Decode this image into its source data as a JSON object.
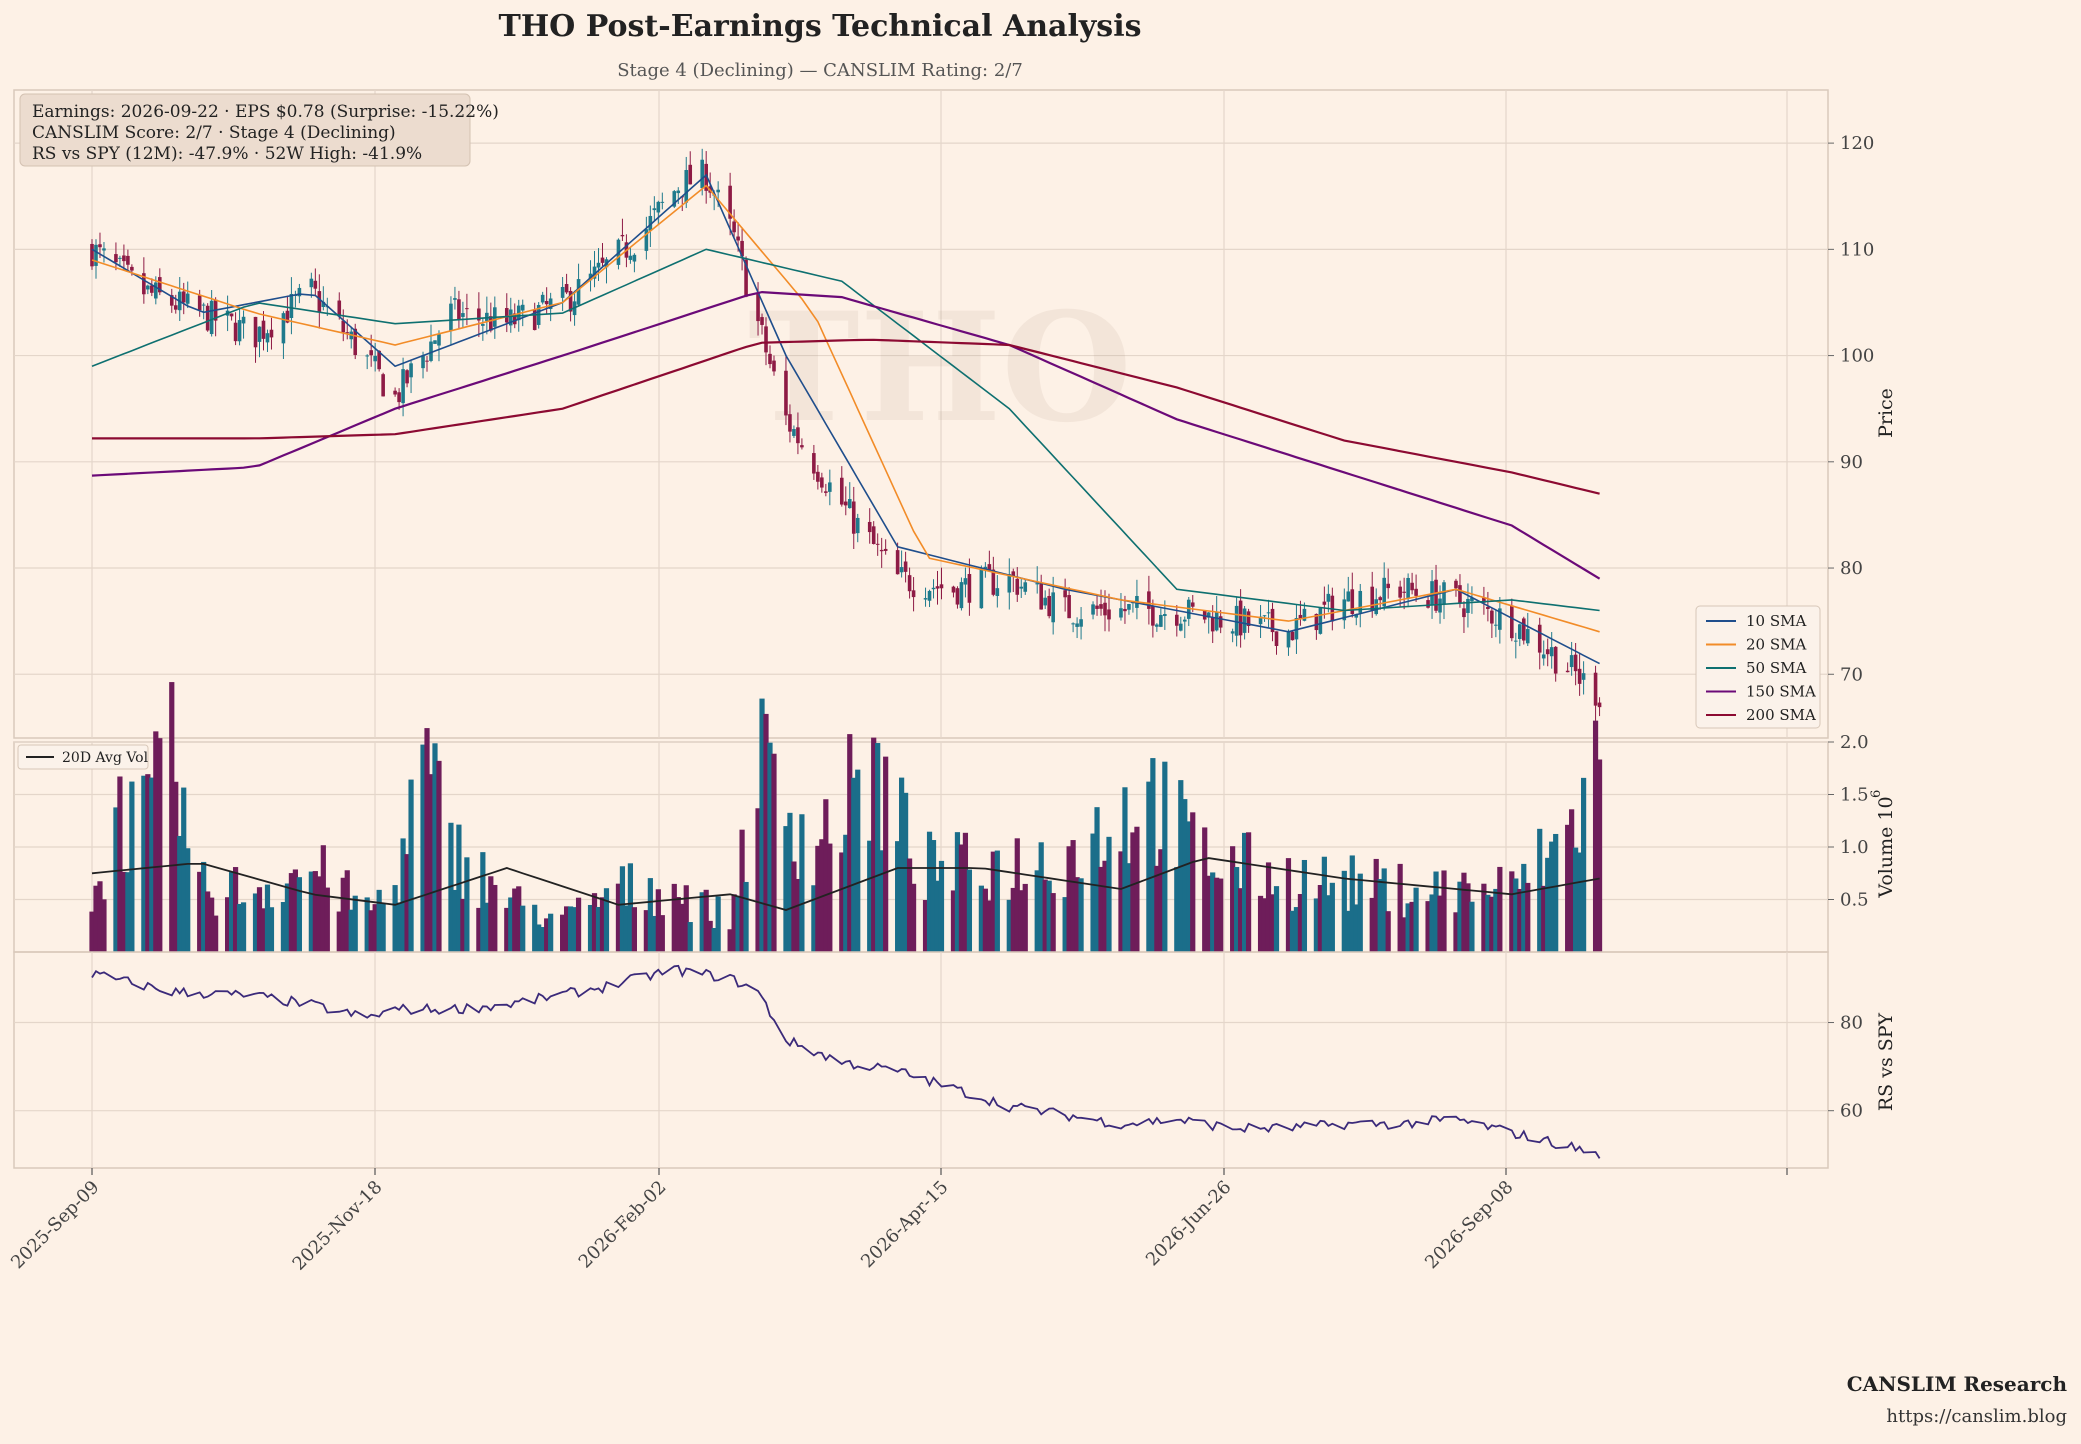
{
  "header": {
    "title": "THO Post-Earnings Technical Analysis",
    "subtitle": "Stage 4 (Declining) — CANSLIM Rating: 2/7"
  },
  "info_box": {
    "line1": "Earnings: 2026-09-22 · EPS $0.78 (Surprise: -15.22%)",
    "line2": "CANSLIM Score: 2/7 · Stage 4 (Declining)",
    "line3": "RS vs SPY (12M): -47.9% · 52W High: -41.9%"
  },
  "watermark": "THO",
  "footer": {
    "brand": "CANSLIM Research",
    "url": "https://canslim.blog"
  },
  "colors": {
    "background": "#fdf1e6",
    "up_candle": "#1f7a8c",
    "down_candle": "#8e1b45",
    "sma10": "#1f4e8c",
    "sma20": "#f28c28",
    "sma50": "#0e7070",
    "sma150": "#6b0a78",
    "sma200": "#8c0a32",
    "volume_up": "#1b6e8a",
    "volume_down": "#6e1d5a",
    "avg_vol": "#222222",
    "rs_line": "#3b2a7a"
  },
  "chart_data": [
    {
      "type": "candlestick",
      "panel": "price",
      "ylabel": "Price",
      "ylim": [
        64,
        125
      ],
      "yticks": [
        70,
        80,
        90,
        100,
        110,
        120
      ],
      "x_start": "2025-09-09",
      "x_end": "2026-09-22",
      "x_ticks": [
        "2025-Sep-09",
        "2025-Nov-18",
        "2026-Feb-02",
        "2026-Apr-15",
        "2026-Jun-26",
        "2026-Sep-08"
      ],
      "close_anchors": [
        [
          "2025-09-09",
          110
        ],
        [
          "2025-09-22",
          106
        ],
        [
          "2025-10-06",
          104
        ],
        [
          "2025-10-20",
          102
        ],
        [
          "2025-11-03",
          106
        ],
        [
          "2025-11-14",
          101
        ],
        [
          "2025-11-24",
          96
        ],
        [
          "2025-12-08",
          104
        ],
        [
          "2025-12-22",
          103
        ],
        [
          "2026-01-05",
          105
        ],
        [
          "2026-01-15",
          108
        ],
        [
          "2026-01-26",
          112
        ],
        [
          "2026-02-03",
          116
        ],
        [
          "2026-02-10",
          117
        ],
        [
          "2026-02-17",
          111
        ],
        [
          "2026-02-23",
          103
        ],
        [
          "2026-03-02",
          94
        ],
        [
          "2026-03-16",
          86
        ],
        [
          "2026-03-30",
          79
        ],
        [
          "2026-04-13",
          78
        ],
        [
          "2026-04-27",
          79
        ],
        [
          "2026-05-11",
          76
        ],
        [
          "2026-05-25",
          76
        ],
        [
          "2026-06-08",
          76
        ],
        [
          "2026-06-22",
          75
        ],
        [
          "2026-07-06",
          74
        ],
        [
          "2026-07-20",
          77
        ],
        [
          "2026-08-03",
          78
        ],
        [
          "2026-08-17",
          77
        ],
        [
          "2026-08-31",
          75
        ],
        [
          "2026-09-10",
          72
        ],
        [
          "2026-09-22",
          68
        ]
      ],
      "sma_series": [
        {
          "name": "10 SMA",
          "values": [
            [
              "2025-09-09",
              110
            ],
            [
              "2025-10-06",
              104
            ],
            [
              "2025-11-03",
              106
            ],
            [
              "2025-11-24",
              99
            ],
            [
              "2026-01-05",
              105
            ],
            [
              "2026-02-10",
              117
            ],
            [
              "2026-03-02",
              100
            ],
            [
              "2026-03-30",
              82
            ],
            [
              "2026-05-11",
              78
            ],
            [
              "2026-07-06",
              74
            ],
            [
              "2026-08-17",
              78
            ],
            [
              "2026-09-22",
              71
            ]
          ]
        },
        {
          "name": "20 SMA",
          "values": [
            [
              "2025-09-09",
              109
            ],
            [
              "2025-10-20",
              104
            ],
            [
              "2025-11-24",
              101
            ],
            [
              "2026-01-05",
              105
            ],
            [
              "2026-02-10",
              116
            ],
            [
              "2026-03-09",
              104
            ],
            [
              "2026-04-06",
              81
            ],
            [
              "2026-05-25",
              77
            ],
            [
              "2026-07-06",
              75
            ],
            [
              "2026-08-17",
              78
            ],
            [
              "2026-09-22",
              74
            ]
          ]
        },
        {
          "name": "50 SMA",
          "values": [
            [
              "2025-09-09",
              99
            ],
            [
              "2025-10-20",
              105
            ],
            [
              "2025-11-24",
              103
            ],
            [
              "2026-01-05",
              104
            ],
            [
              "2026-02-10",
              110
            ],
            [
              "2026-03-16",
              107
            ],
            [
              "2026-04-27",
              95
            ],
            [
              "2026-06-08",
              78
            ],
            [
              "2026-07-20",
              76
            ],
            [
              "2026-08-31",
              77
            ],
            [
              "2026-09-22",
              76
            ]
          ]
        },
        {
          "name": "150 SMA",
          "values": [
            [
              "2025-09-09",
              88.7
            ],
            [
              "2025-10-20",
              89.5
            ],
            [
              "2025-11-24",
              95
            ],
            [
              "2026-01-05",
              100
            ],
            [
              "2026-02-23",
              106
            ],
            [
              "2026-03-16",
              105.5
            ],
            [
              "2026-04-27",
              101
            ],
            [
              "2026-06-08",
              94
            ],
            [
              "2026-07-20",
              89
            ],
            [
              "2026-08-31",
              84
            ],
            [
              "2026-09-22",
              79
            ]
          ]
        },
        {
          "name": "200 SMA",
          "values": [
            [
              "2025-09-09",
              92.2
            ],
            [
              "2025-10-20",
              92.2
            ],
            [
              "2025-11-24",
              92.6
            ],
            [
              "2026-01-05",
              95
            ],
            [
              "2026-02-23",
              101.2
            ],
            [
              "2026-03-23",
              101.5
            ],
            [
              "2026-04-27",
              101
            ],
            [
              "2026-06-08",
              97
            ],
            [
              "2026-07-20",
              92
            ],
            [
              "2026-08-31",
              89
            ],
            [
              "2026-09-22",
              87
            ]
          ]
        }
      ],
      "legend": [
        "10 SMA",
        "20 SMA",
        "50 SMA",
        "150 SMA",
        "200 SMA"
      ],
      "legend_position": "lower-right",
      "grid": true
    },
    {
      "type": "bar",
      "panel": "volume",
      "ylabel": "Volume",
      "yunit_label": "10",
      "yunit_exp": "6",
      "ylim": [
        0,
        2.0
      ],
      "yticks": [
        0.5,
        1.0,
        1.5,
        2.0
      ],
      "volume_anchors": [
        [
          "2025-09-09",
          0.4
        ],
        [
          "2025-09-15",
          1.3
        ],
        [
          "2025-09-22",
          1.2
        ],
        [
          "2025-09-29",
          1.8
        ],
        [
          "2025-10-06",
          0.6
        ],
        [
          "2025-10-20",
          0.6
        ],
        [
          "2025-11-03",
          0.8
        ],
        [
          "2025-11-17",
          0.4
        ],
        [
          "2025-11-24",
          0.6
        ],
        [
          "2025-12-01",
          1.8
        ],
        [
          "2025-12-08",
          1.0
        ],
        [
          "2025-12-22",
          0.5
        ],
        [
          "2026-01-05",
          0.3
        ],
        [
          "2026-01-19",
          0.6
        ],
        [
          "2026-02-02",
          0.6
        ],
        [
          "2026-02-16",
          0.3
        ],
        [
          "2026-02-23",
          1.8
        ],
        [
          "2026-03-09",
          1.0
        ],
        [
          "2026-03-23",
          1.7
        ],
        [
          "2026-04-06",
          0.8
        ],
        [
          "2026-04-20",
          0.8
        ],
        [
          "2026-05-11",
          0.9
        ],
        [
          "2026-06-01",
          1.5
        ],
        [
          "2026-06-15",
          0.9
        ],
        [
          "2026-07-06",
          0.7
        ],
        [
          "2026-08-03",
          0.6
        ],
        [
          "2026-08-31",
          0.6
        ],
        [
          "2026-09-14",
          1.1
        ],
        [
          "2026-09-21",
          1.75
        ]
      ],
      "avg_series_name": "20D Avg Vol",
      "avg_anchors": [
        [
          "2025-09-09",
          0.75
        ],
        [
          "2025-10-06",
          0.85
        ],
        [
          "2025-11-03",
          0.55
        ],
        [
          "2025-11-24",
          0.45
        ],
        [
          "2025-12-22",
          0.8
        ],
        [
          "2026-01-19",
          0.45
        ],
        [
          "2026-02-16",
          0.55
        ],
        [
          "2026-03-02",
          0.4
        ],
        [
          "2026-03-30",
          0.8
        ],
        [
          "2026-04-20",
          0.8
        ],
        [
          "2026-05-25",
          0.6
        ],
        [
          "2026-06-15",
          0.9
        ],
        [
          "2026-07-20",
          0.7
        ],
        [
          "2026-08-31",
          0.55
        ],
        [
          "2026-09-22",
          0.7
        ]
      ],
      "legend_position": "upper-left",
      "grid": true
    },
    {
      "type": "line",
      "panel": "rs",
      "ylabel": "RS vs SPY",
      "ylim": [
        47,
        96
      ],
      "yticks": [
        60,
        80
      ],
      "series": [
        {
          "values": [
            [
              "2025-09-09",
              91
            ],
            [
              "2025-09-29",
              87
            ],
            [
              "2025-10-20",
              86
            ],
            [
              "2025-11-03",
              84
            ],
            [
              "2025-11-17",
              81
            ],
            [
              "2025-11-24",
              83
            ],
            [
              "2025-12-08",
              83
            ],
            [
              "2025-12-22",
              84
            ],
            [
              "2026-01-15",
              88
            ],
            [
              "2026-02-02",
              92
            ],
            [
              "2026-02-16",
              90
            ],
            [
              "2026-02-23",
              87
            ],
            [
              "2026-03-02",
              76
            ],
            [
              "2026-03-16",
              71
            ],
            [
              "2026-03-30",
              69
            ],
            [
              "2026-04-13",
              65
            ],
            [
              "2026-04-27",
              61
            ],
            [
              "2026-05-11",
              59
            ],
            [
              "2026-05-25",
              57
            ],
            [
              "2026-06-08",
              58
            ],
            [
              "2026-06-22",
              56
            ],
            [
              "2026-07-06",
              56
            ],
            [
              "2026-07-20",
              57
            ],
            [
              "2026-08-03",
              57
            ],
            [
              "2026-08-17",
              58
            ],
            [
              "2026-08-31",
              55
            ],
            [
              "2026-09-14",
              52
            ],
            [
              "2026-09-22",
              50
            ]
          ]
        }
      ],
      "grid": true
    }
  ]
}
